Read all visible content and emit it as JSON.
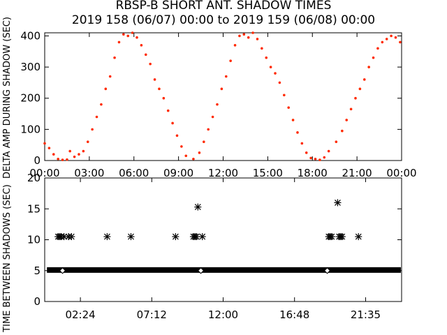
{
  "title": "RBSP-B SHORT ANT. SHADOW TIMES",
  "subtitle": "2019 158 (06/07) 00:00 to 2019 159 (06/08) 00:00",
  "colors": {
    "upper_points": "#ff2a00",
    "lower_points": "#000000",
    "frame": "#000000"
  },
  "chart_data": [
    {
      "type": "scatter",
      "ylabel": "DELTA AMP DURING SHADOW (SEC)",
      "xlabel": "",
      "xlim": [
        0,
        24
      ],
      "ylim": [
        0,
        410
      ],
      "xticks": [
        "00:00",
        "03:00",
        "06:00",
        "09:00",
        "12:00",
        "15:00",
        "18:00",
        "21:00",
        "00:00"
      ],
      "xtick_values": [
        0,
        3,
        6,
        9,
        12,
        15,
        18,
        21,
        24
      ],
      "yticks": [
        0,
        100,
        200,
        300,
        400
      ],
      "series": [
        {
          "x": [
            0.0,
            0.3,
            0.6,
            0.9,
            1.2,
            1.5,
            1.7,
            2.0,
            2.3,
            2.6,
            2.9,
            3.2,
            3.5,
            3.8,
            4.1,
            4.4,
            4.7,
            5.0,
            5.3,
            5.6,
            5.9,
            6.2,
            6.5,
            6.8,
            7.1,
            7.4,
            7.7,
            8.0,
            8.3,
            8.6,
            8.9,
            9.2,
            9.5,
            10.0,
            10.4,
            10.7,
            11.0,
            11.3,
            11.6,
            11.9,
            12.2,
            12.5,
            12.8,
            13.1,
            13.4,
            13.7,
            14.0,
            14.3,
            14.6,
            14.9,
            15.2,
            15.5,
            15.8,
            16.1,
            16.4,
            16.7,
            17.0,
            17.3,
            17.6,
            17.9,
            18.2,
            18.5,
            18.8,
            19.1,
            19.6,
            20.0,
            20.3,
            20.6,
            20.9,
            21.2,
            21.5,
            21.8,
            22.1,
            22.4,
            22.7,
            23.0,
            23.3,
            23.6,
            23.9
          ],
          "y": [
            55,
            40,
            20,
            5,
            2,
            3,
            30,
            12,
            20,
            30,
            60,
            100,
            140,
            180,
            230,
            270,
            330,
            380,
            405,
            400,
            410,
            395,
            370,
            340,
            310,
            260,
            230,
            200,
            160,
            120,
            80,
            45,
            15,
            5,
            25,
            60,
            100,
            140,
            180,
            230,
            270,
            320,
            370,
            400,
            405,
            395,
            410,
            390,
            360,
            330,
            300,
            280,
            250,
            210,
            170,
            130,
            90,
            55,
            25,
            8,
            5,
            2,
            10,
            30,
            60,
            95,
            130,
            165,
            200,
            230,
            260,
            300,
            330,
            360,
            380,
            390,
            400,
            395,
            380
          ]
        }
      ]
    },
    {
      "type": "scatter",
      "ylabel": "TIME BETWEEN SHADOWS (SEC)",
      "xlabel": "",
      "xlim": [
        0,
        24
      ],
      "ylim": [
        0,
        20
      ],
      "xticks": [
        "02:24",
        "07:12",
        "12:00",
        "16:48",
        "21:35"
      ],
      "xtick_values": [
        2.4,
        7.2,
        12.0,
        16.8,
        21.58
      ],
      "yticks": [
        0,
        5,
        10,
        15,
        20
      ],
      "series": [
        {
          "name": "",
          "x": [
            0.9,
            1.0,
            1.1,
            1.3,
            1.6,
            1.8,
            4.2,
            5.8,
            8.8,
            10.0,
            10.1,
            10.2,
            10.3,
            10.6,
            19.1,
            19.2,
            19.3,
            19.7,
            19.8,
            19.9,
            20.0,
            21.1
          ],
          "y": [
            10.5,
            10.5,
            10.5,
            10.5,
            10.5,
            10.5,
            10.5,
            10.5,
            10.5,
            10.5,
            10.5,
            10.5,
            15.3,
            10.5,
            10.5,
            10.5,
            10.5,
            16.0,
            10.5,
            10.5,
            10.5,
            10.5
          ]
        },
        {
          "name": "",
          "x": [
            1.2,
            10.5,
            19.0
          ],
          "y": [
            5.0,
            5.0,
            5.0
          ]
        }
      ],
      "band": {
        "y": 5.1,
        "x_range": [
          0.15,
          23.95
        ]
      }
    }
  ]
}
